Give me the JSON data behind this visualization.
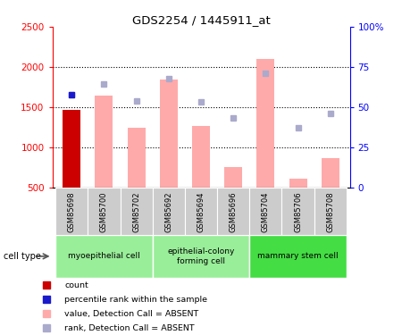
{
  "title": "GDS2254 / 1445911_at",
  "samples": [
    "GSM85698",
    "GSM85700",
    "GSM85702",
    "GSM85692",
    "GSM85694",
    "GSM85696",
    "GSM85704",
    "GSM85706",
    "GSM85708"
  ],
  "count_bar_index": 0,
  "count_bar_value": 1470,
  "pink_bars": [
    1640,
    1250,
    1840,
    1270,
    760,
    2100,
    610,
    870
  ],
  "pink_bar_indices": [
    1,
    2,
    3,
    4,
    5,
    6,
    7,
    8
  ],
  "blue_sq_values": [
    1660,
    1790,
    1580,
    1860,
    1570,
    1370,
    1920,
    1250,
    1420
  ],
  "blue_sq_indices": [
    0,
    1,
    2,
    3,
    4,
    5,
    6,
    7,
    8
  ],
  "ylim_left": [
    500,
    2500
  ],
  "ylim_right": [
    0,
    100
  ],
  "yticks_left": [
    500,
    1000,
    1500,
    2000,
    2500
  ],
  "ytick_labels_right": [
    "0",
    "25",
    "50",
    "75",
    "100%"
  ],
  "ytick_vals_right": [
    0,
    25,
    50,
    75,
    100
  ],
  "grid_vals": [
    1000,
    1500,
    2000
  ],
  "bar_color_pink": "#ffaaaa",
  "bar_color_darkred": "#cc0000",
  "sq_color_blue_dark": "#1a1acc",
  "sq_color_blue_light": "#aaaacc",
  "cell_groups": [
    {
      "label": "myoepithelial cell",
      "start": 0,
      "end": 2,
      "color": "#99ee99"
    },
    {
      "label": "epithelial-colony\nforming cell",
      "start": 3,
      "end": 5,
      "color": "#99ee99"
    },
    {
      "label": "mammary stem cell",
      "start": 6,
      "end": 8,
      "color": "#44dd44"
    }
  ],
  "sample_bg": "#cccccc",
  "legend_items": [
    {
      "color": "#cc0000",
      "label": "count"
    },
    {
      "color": "#1a1acc",
      "label": "percentile rank within the sample"
    },
    {
      "color": "#ffaaaa",
      "label": "value, Detection Call = ABSENT"
    },
    {
      "color": "#aaaacc",
      "label": "rank, Detection Call = ABSENT"
    }
  ]
}
